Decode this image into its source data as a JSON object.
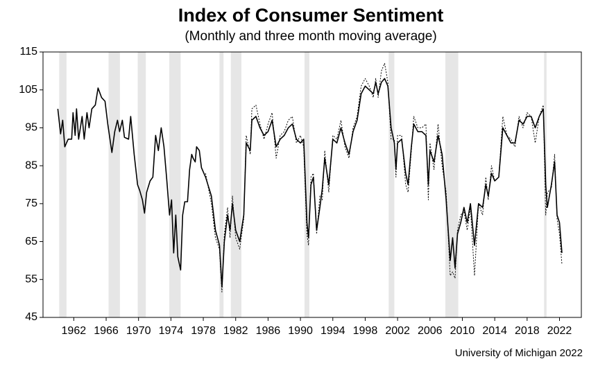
{
  "chart_data": {
    "type": "line",
    "title": "Index of Consumer Sentiment",
    "subtitle": "(Monthly and three month moving average)",
    "source": "University of Michigan 2022",
    "xlim": [
      1958.2,
      2024.7
    ],
    "ylim": [
      45,
      115
    ],
    "xticks": [
      1962,
      1966,
      1970,
      1974,
      1978,
      1982,
      1986,
      1990,
      1994,
      1998,
      2002,
      2006,
      2010,
      2014,
      2018,
      2022
    ],
    "yticks": [
      45,
      55,
      65,
      75,
      85,
      95,
      105,
      115
    ],
    "recessions": [
      [
        1960.2,
        1961.1
      ],
      [
        1966.3,
        1967.7
      ],
      [
        1969.9,
        1970.9
      ],
      [
        1973.8,
        1975.2
      ],
      [
        1980.0,
        1980.5
      ],
      [
        1981.4,
        1982.7
      ],
      [
        1990.5,
        1991.1
      ],
      [
        2000.9,
        2001.6
      ],
      [
        2007.9,
        2009.5
      ],
      [
        2020.1,
        2020.4
      ]
    ],
    "recession_color": "#e6e6e6",
    "x": [
      1960.03,
      1960.37,
      1960.63,
      1960.89,
      1961.31,
      1961.74,
      1961.91,
      1962.17,
      1962.34,
      1962.6,
      1963.03,
      1963.29,
      1963.63,
      1963.89,
      1964.23,
      1964.66,
      1965.0,
      1965.43,
      1965.86,
      1966.2,
      1966.71,
      1967.06,
      1967.4,
      1967.66,
      1968.0,
      1968.26,
      1968.77,
      1969.03,
      1969.46,
      1969.88,
      1970.14,
      1970.48,
      1970.74,
      1971.0,
      1971.43,
      1971.77,
      1972.11,
      1972.45,
      1972.8,
      1973.14,
      1973.48,
      1973.83,
      1974.08,
      1974.34,
      1974.6,
      1974.85,
      1975.2,
      1975.45,
      1975.71,
      1976.05,
      1976.31,
      1976.57,
      1976.74,
      1977.0,
      1977.17,
      1977.51,
      1977.77,
      1978.28,
      1979.0,
      1979.5,
      1980.0,
      1980.3,
      1980.6,
      1981.0,
      1981.3,
      1981.6,
      1982.0,
      1982.5,
      1983.0,
      1983.3,
      1983.8,
      1984.0,
      1984.5,
      1985.0,
      1985.5,
      1986.0,
      1986.5,
      1987.0,
      1987.5,
      1988.0,
      1988.5,
      1989.0,
      1989.5,
      1990.0,
      1990.4,
      1990.8,
      1991.0,
      1991.3,
      1991.6,
      1992.0,
      1992.4,
      1992.7,
      1993.0,
      1993.5,
      1994.0,
      1994.5,
      1995.0,
      1995.5,
      1996.0,
      1996.5,
      1997.0,
      1997.5,
      1998.0,
      1998.5,
      1999.0,
      1999.3,
      1999.6,
      2000.0,
      2000.4,
      2000.8,
      2001.2,
      2001.6,
      2001.8,
      2002.0,
      2002.5,
      2003.0,
      2003.3,
      2003.7,
      2004.0,
      2004.5,
      2005.0,
      2005.5,
      2005.8,
      2006.0,
      2006.5,
      2007.0,
      2007.5,
      2008.0,
      2008.5,
      2008.8,
      2009.1,
      2009.4,
      2009.8,
      2010.2,
      2010.6,
      2011.0,
      2011.5,
      2012.0,
      2012.5,
      2012.9,
      2013.2,
      2013.6,
      2014.0,
      2014.5,
      2015.0,
      2015.5,
      2016.0,
      2016.5,
      2017.0,
      2017.5,
      2018.0,
      2018.5,
      2019.0,
      2019.5,
      2020.0,
      2020.3,
      2020.5,
      2021.0,
      2021.4,
      2021.7,
      2022.0,
      2022.3
    ],
    "series": [
      {
        "name": "Monthly",
        "color": "#000000",
        "dash": "2,2",
        "width": 1,
        "values": [
          null,
          null,
          null,
          null,
          null,
          null,
          null,
          null,
          null,
          null,
          null,
          null,
          null,
          null,
          null,
          null,
          null,
          null,
          null,
          null,
          null,
          null,
          null,
          null,
          null,
          null,
          null,
          null,
          null,
          null,
          null,
          null,
          null,
          null,
          null,
          null,
          null,
          null,
          null,
          null,
          null,
          null,
          null,
          null,
          null,
          null,
          null,
          null,
          null,
          null,
          null,
          null,
          null,
          null,
          null,
          null,
          null,
          83,
          75,
          66,
          63,
          51.7,
          67,
          74,
          66,
          77,
          66,
          63,
          71,
          93,
          88,
          100,
          101,
          96,
          92,
          96,
          99,
          87,
          93,
          94,
          97,
          98,
          91,
          93,
          90,
          67,
          64,
          82,
          83,
          67,
          77,
          76,
          89,
          78,
          93,
          92,
          97,
          90,
          87,
          95,
          98,
          106,
          108,
          106,
          103,
          108,
          103,
          110,
          112,
          107,
          92,
          92,
          82,
          93,
          93,
          80,
          78,
          89,
          98,
          95,
          95,
          96,
          76,
          91,
          84,
          96,
          85,
          78,
          56,
          57,
          55.3,
          68,
          72,
          73,
          68,
          74,
          56,
          75,
          72,
          82,
          76,
          85,
          81,
          82,
          98,
          93,
          92,
          90,
          98,
          95,
          99,
          98,
          91,
          98,
          101,
          72,
          78,
          79,
          88,
          71,
          67,
          59
        ]
      },
      {
        "name": "Three month moving average",
        "color": "#000000",
        "dash": "",
        "width": 1.6,
        "values": [
          100,
          93.4,
          97,
          90,
          92,
          92,
          99,
          93,
          100,
          92,
          98,
          92,
          99,
          95,
          100,
          101,
          105.5,
          103,
          102,
          96,
          88.5,
          94,
          97,
          94,
          97,
          92.5,
          92,
          98,
          88,
          80,
          78.5,
          76,
          72.5,
          78,
          81,
          82,
          93,
          89,
          95,
          90,
          81.5,
          72,
          76,
          62,
          72,
          61,
          57.5,
          72,
          75.5,
          75.5,
          84,
          88,
          87,
          86,
          90,
          89,
          84.5,
          82,
          77,
          68,
          64,
          53,
          65,
          72,
          68,
          75,
          68,
          65,
          72,
          91,
          89,
          97,
          98,
          95,
          93,
          94,
          97,
          90,
          92,
          93,
          95,
          96,
          92,
          91,
          92,
          70,
          66,
          80,
          82,
          68,
          74,
          79,
          87,
          80,
          92,
          91,
          95,
          91,
          88,
          94,
          97,
          104,
          106,
          105,
          104,
          107,
          104,
          107,
          108,
          106,
          95,
          91,
          84,
          91,
          92,
          83,
          80,
          90,
          96,
          94,
          94,
          93,
          80,
          89,
          86,
          93,
          88,
          76,
          60,
          66,
          58,
          67,
          70,
          74,
          70,
          75,
          64,
          75,
          74,
          80,
          77,
          83,
          81,
          82,
          95,
          93,
          91,
          91,
          97,
          96,
          98,
          98,
          95,
          98,
          100,
          80,
          74,
          80,
          86,
          72,
          70,
          62
        ]
      }
    ]
  }
}
